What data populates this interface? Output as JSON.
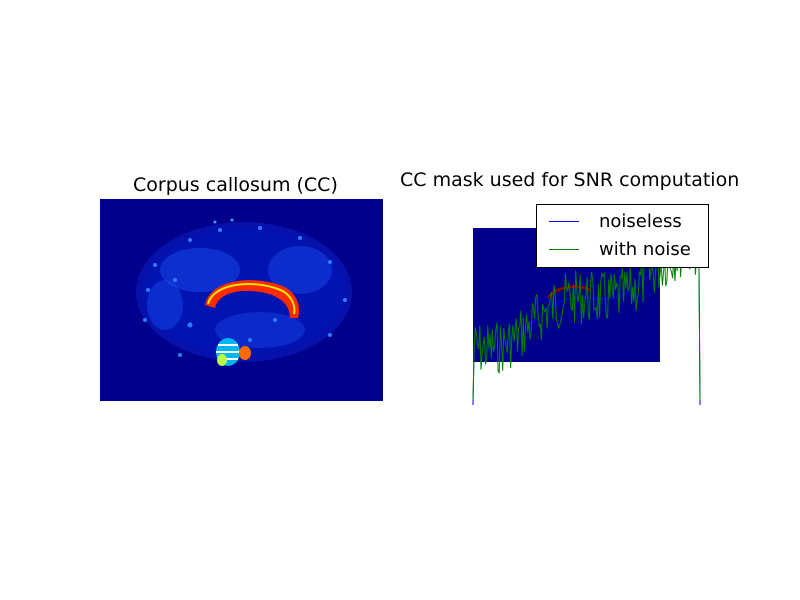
{
  "chart_data": [
    {
      "type": "heatmap",
      "title": "Corpus callosum (CC)",
      "xlabel": "",
      "ylabel": "",
      "colormap": "jet",
      "axes_visible": false,
      "description_of_content": "sagittal brain slice"
    },
    {
      "type": "line",
      "title": "CC mask used for SNR computation",
      "xlabel": "",
      "ylabel": "",
      "axes_visible": false,
      "legend_position": "top-right",
      "series": [
        {
          "name": "noiseless",
          "color": "#0000ff"
        },
        {
          "name": "with noise",
          "color": "#008000"
        }
      ],
      "overlay": {
        "type": "heatmap",
        "colormap": "jet",
        "mask_color": "#8b0000",
        "background": "#00008b"
      }
    }
  ],
  "legend": {
    "items": [
      {
        "label": "noiseless",
        "color": "#0000ff"
      },
      {
        "label": "with noise",
        "color": "#008000"
      }
    ]
  }
}
